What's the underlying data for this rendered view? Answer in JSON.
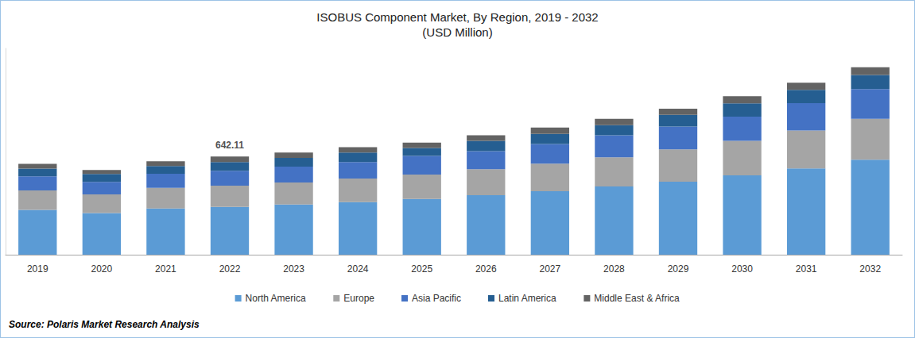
{
  "chart_data": {
    "type": "bar",
    "stacked": true,
    "title": "ISOBUS Component Market, By Region, 2019 - 2032",
    "subtitle": "(USD Million)",
    "source": "Source: Polaris Market Research Analysis",
    "categories": [
      "2019",
      "2020",
      "2021",
      "2022",
      "2023",
      "2024",
      "2025",
      "2026",
      "2027",
      "2028",
      "2029",
      "2030",
      "2031",
      "2032"
    ],
    "series": [
      {
        "name": "North America",
        "color": "#5b9bd5",
        "values": [
          293,
          272,
          303,
          313.3,
          329,
          344,
          365,
          390,
          416,
          447,
          478,
          519,
          565,
          622
        ]
      },
      {
        "name": "Europe",
        "color": "#a5a5a5",
        "values": [
          128,
          123,
          134,
          138.7,
          144,
          154,
          159,
          170,
          180,
          190,
          211,
          226,
          247,
          267
        ]
      },
      {
        "name": "Asia Pacific",
        "color": "#4472c4",
        "values": [
          92,
          82,
          92,
          97.6,
          103,
          108,
          123,
          118,
          128,
          144,
          149,
          159,
          180,
          195
        ]
      },
      {
        "name": "Latin America",
        "color": "#255e91",
        "values": [
          51,
          51,
          51,
          56.5,
          57,
          62,
          51,
          67,
          67,
          67,
          77,
          87,
          87,
          92
        ]
      },
      {
        "name": "Middle East & Africa",
        "color": "#636363",
        "values": [
          31,
          26,
          31,
          36.01,
          36,
          36,
          36,
          36,
          41,
          41,
          41,
          46,
          46,
          51
        ]
      }
    ],
    "annotations": [
      {
        "x": "2022",
        "y": 642.11,
        "text": "642.11"
      }
    ],
    "ylim": [
      0,
      1350
    ],
    "grid": false,
    "legend": "bottom",
    "tick_labels": "x"
  }
}
